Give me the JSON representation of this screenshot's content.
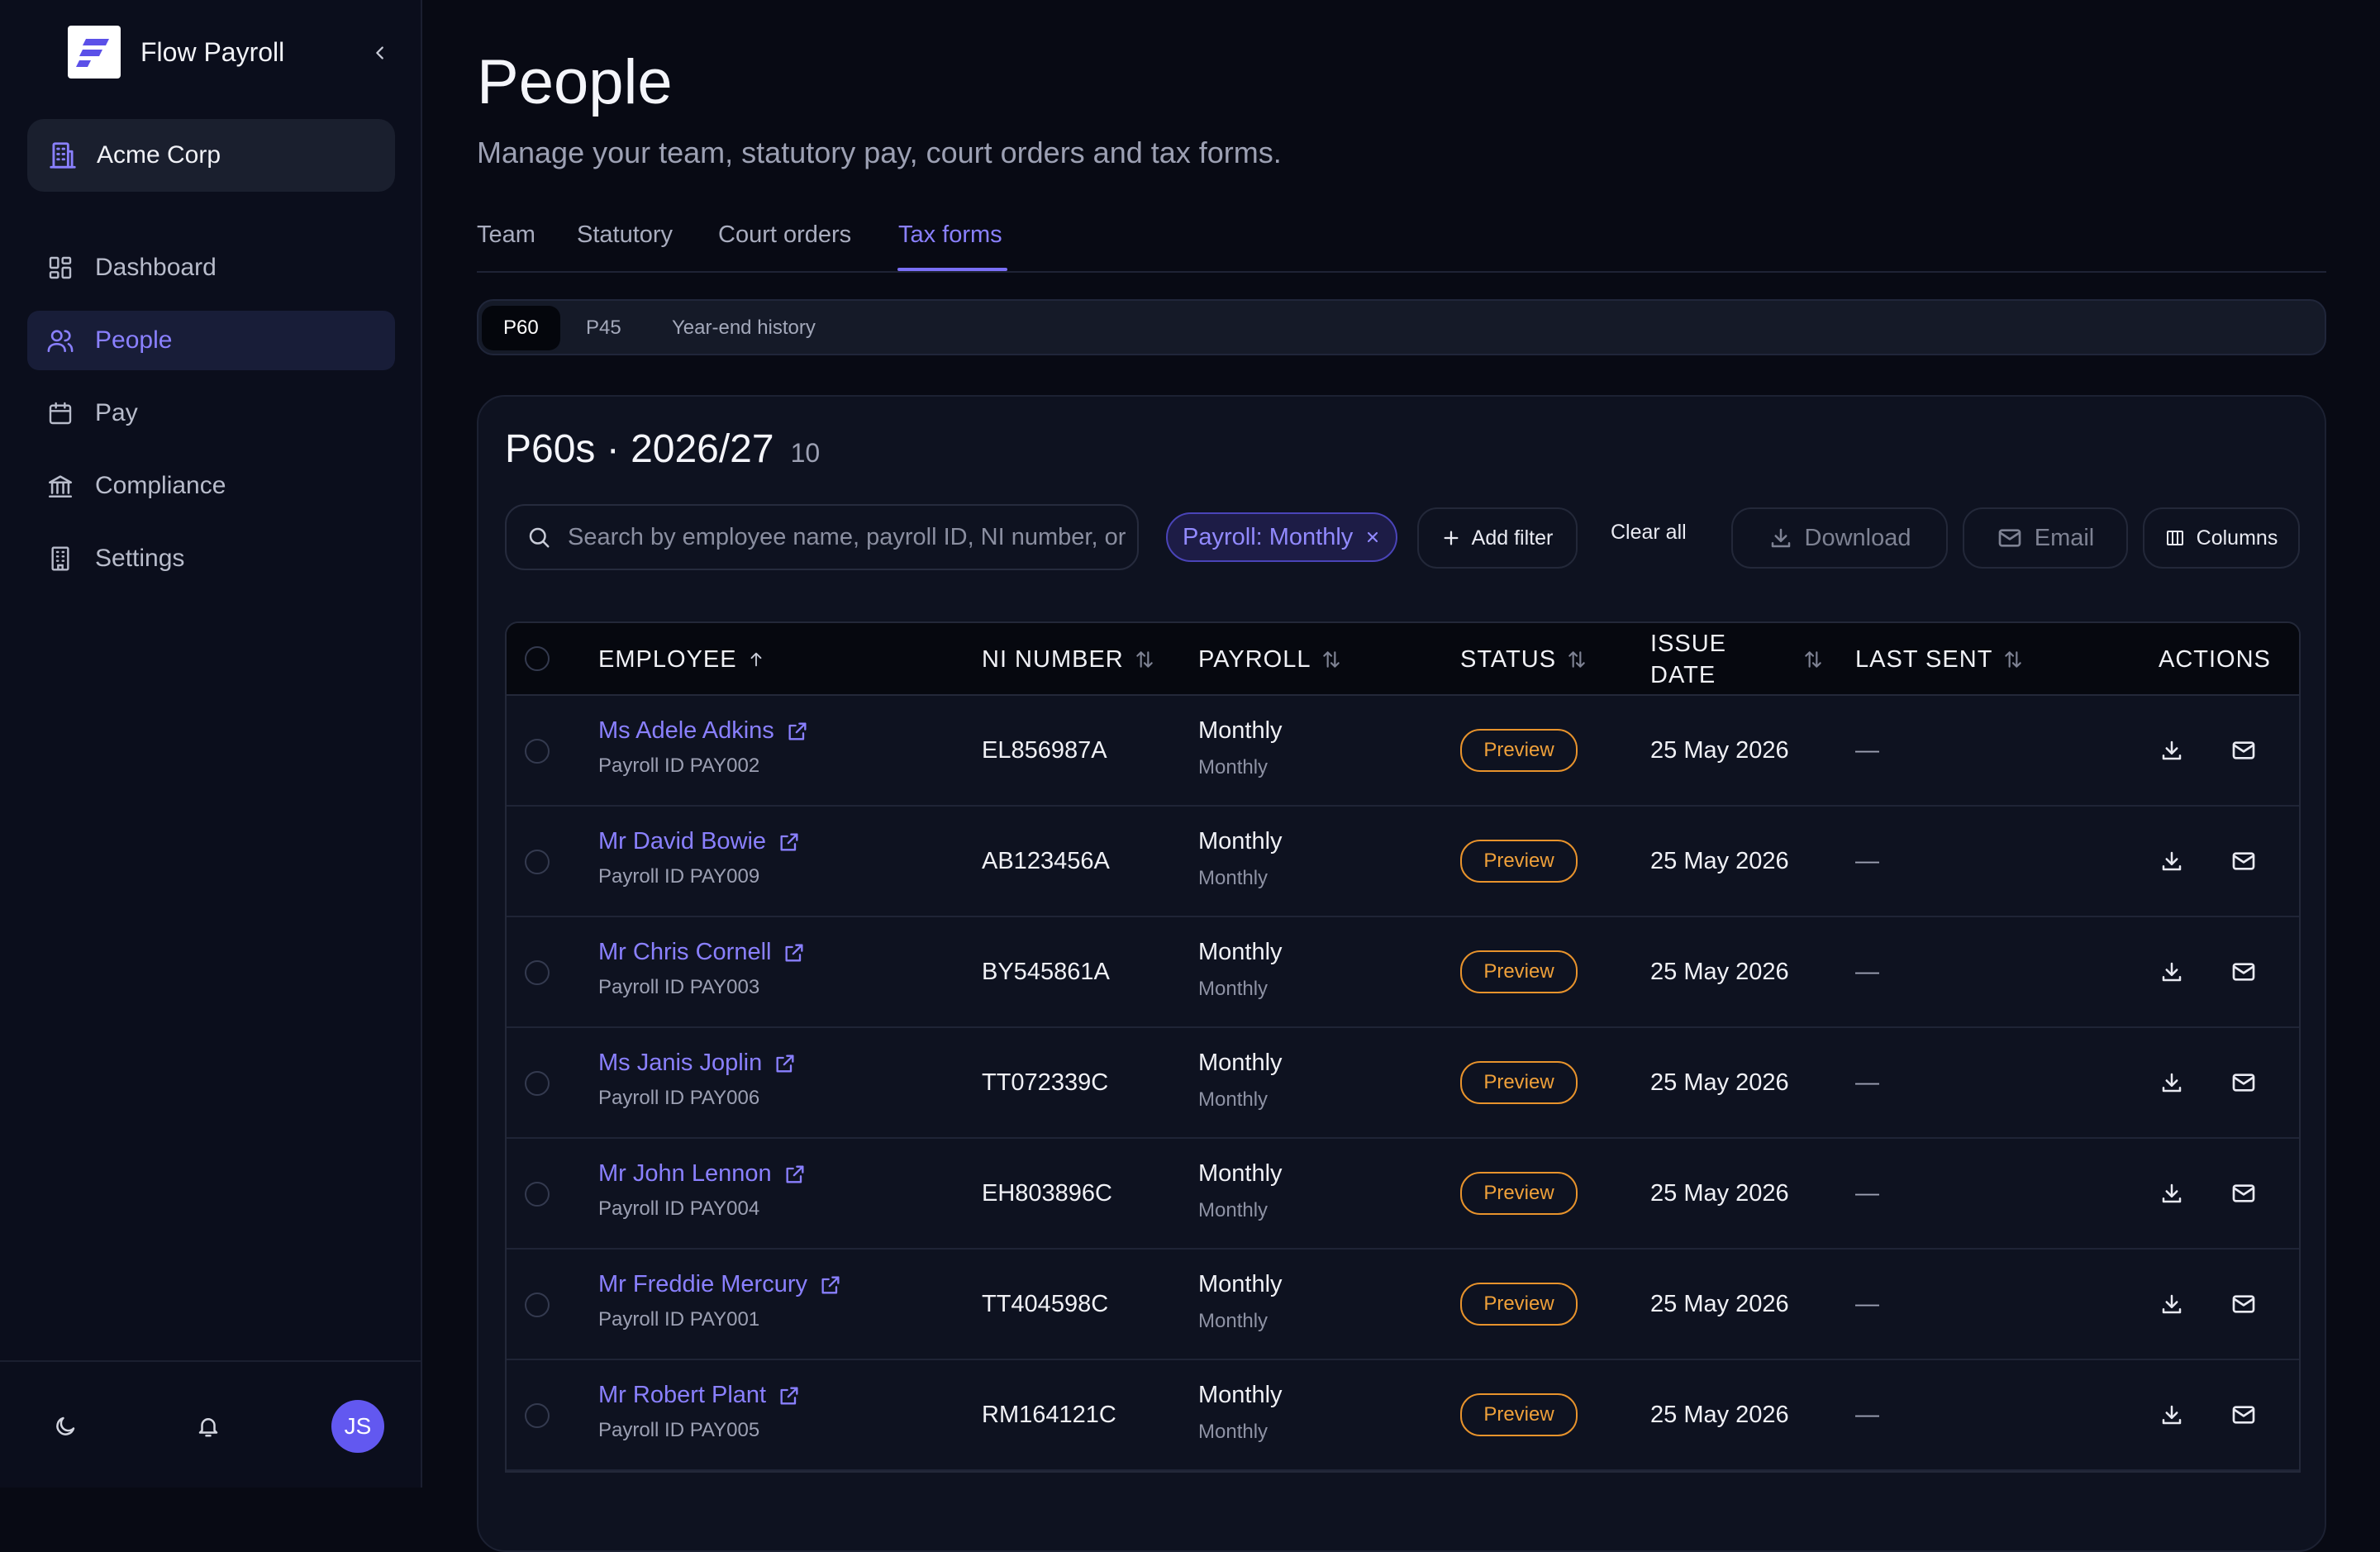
{
  "app": {
    "name": "Flow Payroll",
    "organization": "Acme Corp"
  },
  "user": {
    "initials": "JS"
  },
  "sidebar": {
    "items": [
      {
        "label": "Dashboard",
        "icon": "dashboard-icon"
      },
      {
        "label": "People",
        "icon": "users-icon",
        "active": true
      },
      {
        "label": "Pay",
        "icon": "calendar-icon"
      },
      {
        "label": "Compliance",
        "icon": "bank-icon"
      },
      {
        "label": "Settings",
        "icon": "building-icon"
      }
    ]
  },
  "page": {
    "title": "People",
    "subtitle": "Manage your team, statutory pay, court orders and tax forms."
  },
  "tabs": [
    "Team",
    "Statutory",
    "Court orders",
    "Tax forms"
  ],
  "active_tab": "Tax forms",
  "subtabs": [
    "P60",
    "P45",
    "Year-end history"
  ],
  "active_subtab": "P60",
  "card": {
    "title": "P60s · 2026/27",
    "count": "10"
  },
  "toolbar": {
    "search_placeholder": "Search by employee name, payroll ID, NI number, or",
    "filter_chip": "Payroll: Monthly",
    "add_filter": "Add filter",
    "clear_all": "Clear all",
    "download": "Download",
    "email": "Email",
    "columns": "Columns"
  },
  "table": {
    "headers": {
      "employee": "EMPLOYEE",
      "ni": "NI NUMBER",
      "payroll": "PAYROLL",
      "status": "STATUS",
      "issue_line1": "ISSUE",
      "issue_line2": "DATE",
      "last_sent": "LAST SENT",
      "actions": "ACTIONS"
    },
    "rows": [
      {
        "name": "Ms Adele Adkins",
        "payroll_id": "Payroll ID PAY002",
        "ni": "EL856987A",
        "payroll": "Monthly",
        "payroll_sub": "Monthly",
        "status": "Preview",
        "issue_date": "25 May 2026",
        "last_sent": "—"
      },
      {
        "name": "Mr David Bowie",
        "payroll_id": "Payroll ID PAY009",
        "ni": "AB123456A",
        "payroll": "Monthly",
        "payroll_sub": "Monthly",
        "status": "Preview",
        "issue_date": "25 May 2026",
        "last_sent": "—"
      },
      {
        "name": "Mr Chris Cornell",
        "payroll_id": "Payroll ID PAY003",
        "ni": "BY545861A",
        "payroll": "Monthly",
        "payroll_sub": "Monthly",
        "status": "Preview",
        "issue_date": "25 May 2026",
        "last_sent": "—"
      },
      {
        "name": "Ms Janis Joplin",
        "payroll_id": "Payroll ID PAY006",
        "ni": "TT072339C",
        "payroll": "Monthly",
        "payroll_sub": "Monthly",
        "status": "Preview",
        "issue_date": "25 May 2026",
        "last_sent": "—"
      },
      {
        "name": "Mr John Lennon",
        "payroll_id": "Payroll ID PAY004",
        "ni": "EH803896C",
        "payroll": "Monthly",
        "payroll_sub": "Monthly",
        "status": "Preview",
        "issue_date": "25 May 2026",
        "last_sent": "—"
      },
      {
        "name": "Mr Freddie Mercury",
        "payroll_id": "Payroll ID PAY001",
        "ni": "TT404598C",
        "payroll": "Monthly",
        "payroll_sub": "Monthly",
        "status": "Preview",
        "issue_date": "25 May 2026",
        "last_sent": "—"
      },
      {
        "name": "Mr Robert Plant",
        "payroll_id": "Payroll ID PAY005",
        "ni": "RM164121C",
        "payroll": "Monthly",
        "payroll_sub": "Monthly",
        "status": "Preview",
        "issue_date": "25 May 2026",
        "last_sent": "—"
      }
    ]
  },
  "colors": {
    "accent": "#8a80ff",
    "status_preview": "#f0a13a",
    "background": "#080a14"
  }
}
